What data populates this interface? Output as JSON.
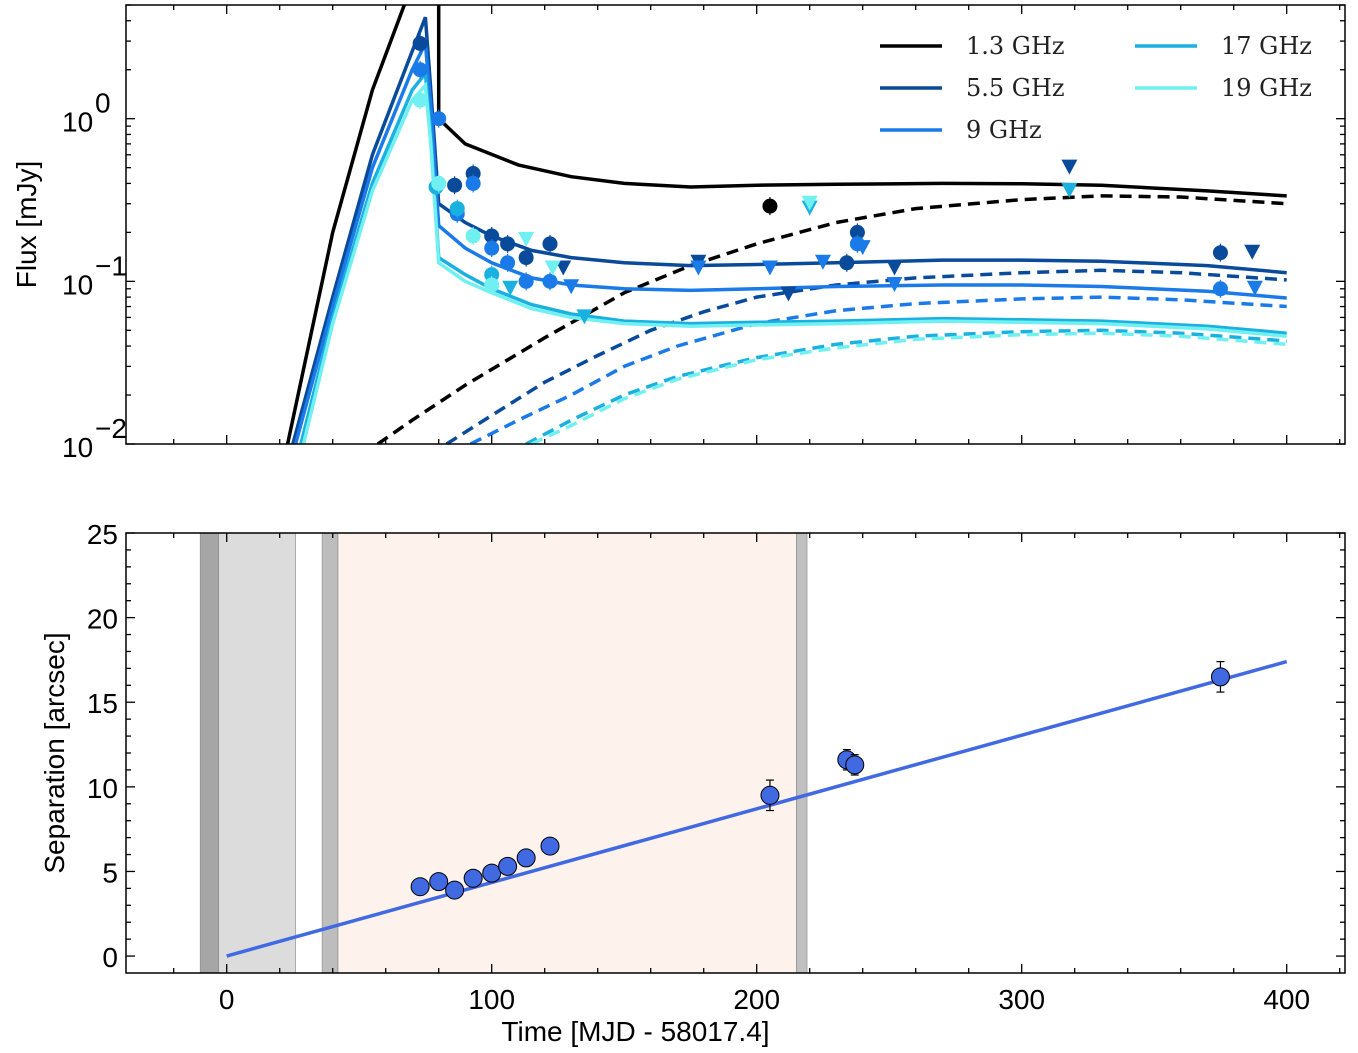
{
  "chart_data": [
    {
      "type": "line",
      "panel": "top",
      "ylabel": "Flux [mJy]",
      "xlabel": "",
      "yscale": "log",
      "xlim": [
        -38,
        422
      ],
      "ylim": [
        0.01,
        5
      ],
      "yticks": [
        {
          "value": 1,
          "base": "10",
          "exp": "0"
        },
        {
          "value": 0.1,
          "base": "10",
          "exp": "−1"
        },
        {
          "value": 0.01,
          "base": "10",
          "exp": "−2"
        }
      ],
      "legend": {
        "placement": "top-right",
        "columns": 2
      },
      "series": [
        {
          "name": "1.3 GHz",
          "color": "#000000",
          "model_total": [
            [
              23,
              0.01
            ],
            [
              40,
              0.2
            ],
            [
              55,
              1.5
            ],
            [
              67,
              5
            ]
          ],
          "model_total_late": [
            [
              80,
              5
            ],
            [
              80,
              1.0
            ],
            [
              90,
              0.7
            ],
            [
              110,
              0.52
            ],
            [
              130,
              0.44
            ],
            [
              150,
              0.4
            ],
            [
              175,
              0.38
            ],
            [
              200,
              0.39
            ],
            [
              230,
              0.395
            ],
            [
              270,
              0.4
            ],
            [
              300,
              0.398
            ],
            [
              330,
              0.39
            ],
            [
              370,
              0.36
            ],
            [
              400,
              0.335
            ]
          ],
          "model_late": [
            [
              57,
              0.01
            ],
            [
              70,
              0.014
            ],
            [
              90,
              0.023
            ],
            [
              120,
              0.045
            ],
            [
              150,
              0.085
            ],
            [
              175,
              0.125
            ],
            [
              200,
              0.17
            ],
            [
              230,
              0.23
            ],
            [
              260,
              0.28
            ],
            [
              300,
              0.318
            ],
            [
              330,
              0.335
            ],
            [
              360,
              0.33
            ],
            [
              400,
              0.3
            ]
          ],
          "points": [
            {
              "x": 205,
              "y": 0.29
            }
          ],
          "upper_limits": [],
          "style": "solid"
        },
        {
          "name": "5.5 GHz",
          "color": "#0a4a9a",
          "model_total": [
            [
              25,
              0.01
            ],
            [
              40,
              0.08
            ],
            [
              55,
              0.6
            ],
            [
              70,
              2.6
            ],
            [
              75,
              4.2
            ],
            [
              77,
              1.5
            ],
            [
              80,
              0.3
            ],
            [
              90,
              0.23
            ],
            [
              100,
              0.19
            ],
            [
              115,
              0.155
            ],
            [
              130,
              0.14
            ],
            [
              150,
              0.13
            ],
            [
              175,
              0.125
            ],
            [
              200,
              0.127
            ],
            [
              230,
              0.13
            ],
            [
              270,
              0.135
            ],
            [
              300,
              0.135
            ],
            [
              330,
              0.133
            ],
            [
              370,
              0.125
            ],
            [
              400,
              0.113
            ]
          ],
          "model_late": [
            [
              83,
              0.01
            ],
            [
              100,
              0.015
            ],
            [
              120,
              0.024
            ],
            [
              140,
              0.035
            ],
            [
              160,
              0.05
            ],
            [
              180,
              0.065
            ],
            [
              200,
              0.08
            ],
            [
              230,
              0.095
            ],
            [
              260,
              0.105
            ],
            [
              300,
              0.113
            ],
            [
              330,
              0.117
            ],
            [
              360,
              0.113
            ],
            [
              400,
              0.102
            ]
          ],
          "points": [
            {
              "x": 73,
              "y": 2.9
            },
            {
              "x": 86,
              "y": 0.39
            },
            {
              "x": 93,
              "y": 0.46
            },
            {
              "x": 100,
              "y": 0.19
            },
            {
              "x": 106,
              "y": 0.17
            },
            {
              "x": 113,
              "y": 0.14
            },
            {
              "x": 122,
              "y": 0.17
            },
            {
              "x": 234,
              "y": 0.13
            },
            {
              "x": 238,
              "y": 0.2
            },
            {
              "x": 375,
              "y": 0.15
            }
          ],
          "upper_limits": [
            {
              "x": 127,
              "y": 0.12
            },
            {
              "x": 178,
              "y": 0.13
            },
            {
              "x": 212,
              "y": 0.083
            },
            {
              "x": 252,
              "y": 0.12
            },
            {
              "x": 318,
              "y": 0.5
            },
            {
              "x": 387,
              "y": 0.15
            }
          ],
          "style": "solid"
        },
        {
          "name": "9 GHz",
          "color": "#1a7ae8",
          "model_total": [
            [
              26,
              0.01
            ],
            [
              40,
              0.07
            ],
            [
              55,
              0.5
            ],
            [
              70,
              2.0
            ],
            [
              75,
              2.9
            ],
            [
              77,
              1.2
            ],
            [
              80,
              0.22
            ],
            [
              90,
              0.16
            ],
            [
              100,
              0.13
            ],
            [
              115,
              0.105
            ],
            [
              130,
              0.095
            ],
            [
              150,
              0.09
            ],
            [
              175,
              0.088
            ],
            [
              200,
              0.09
            ],
            [
              230,
              0.093
            ],
            [
              270,
              0.095
            ],
            [
              300,
              0.095
            ],
            [
              330,
              0.093
            ],
            [
              370,
              0.087
            ],
            [
              400,
              0.079
            ]
          ],
          "model_late": [
            [
              92,
              0.01
            ],
            [
              110,
              0.014
            ],
            [
              130,
              0.02
            ],
            [
              150,
              0.03
            ],
            [
              170,
              0.04
            ],
            [
              200,
              0.055
            ],
            [
              230,
              0.066
            ],
            [
              260,
              0.073
            ],
            [
              300,
              0.078
            ],
            [
              330,
              0.08
            ],
            [
              360,
              0.077
            ],
            [
              400,
              0.07
            ]
          ],
          "points": [
            {
              "x": 73,
              "y": 2.0
            },
            {
              "x": 80,
              "y": 1.0
            },
            {
              "x": 87,
              "y": 0.26
            },
            {
              "x": 93,
              "y": 0.4
            },
            {
              "x": 100,
              "y": 0.16
            },
            {
              "x": 106,
              "y": 0.13
            },
            {
              "x": 113,
              "y": 0.1
            },
            {
              "x": 122,
              "y": 0.1
            },
            {
              "x": 238,
              "y": 0.17
            },
            {
              "x": 375,
              "y": 0.09
            }
          ],
          "upper_limits": [
            {
              "x": 130,
              "y": 0.092
            },
            {
              "x": 178,
              "y": 0.12
            },
            {
              "x": 205,
              "y": 0.12
            },
            {
              "x": 225,
              "y": 0.13
            },
            {
              "x": 240,
              "y": 0.16
            },
            {
              "x": 252,
              "y": 0.095
            },
            {
              "x": 388,
              "y": 0.09
            }
          ],
          "style": "solid"
        },
        {
          "name": "17 GHz",
          "color": "#1ab0e0",
          "model_total": [
            [
              28,
              0.01
            ],
            [
              40,
              0.06
            ],
            [
              55,
              0.4
            ],
            [
              70,
              1.5
            ],
            [
              75,
              1.9
            ],
            [
              77,
              0.8
            ],
            [
              80,
              0.14
            ],
            [
              90,
              0.11
            ],
            [
              100,
              0.09
            ],
            [
              115,
              0.072
            ],
            [
              130,
              0.063
            ],
            [
              150,
              0.057
            ],
            [
              175,
              0.055
            ],
            [
              200,
              0.056
            ],
            [
              230,
              0.057
            ],
            [
              270,
              0.059
            ],
            [
              300,
              0.058
            ],
            [
              330,
              0.057
            ],
            [
              370,
              0.053
            ],
            [
              400,
              0.048
            ]
          ],
          "model_late": [
            [
              113,
              0.01
            ],
            [
              130,
              0.014
            ],
            [
              150,
              0.02
            ],
            [
              170,
              0.026
            ],
            [
              200,
              0.034
            ],
            [
              230,
              0.041
            ],
            [
              260,
              0.046
            ],
            [
              300,
              0.049
            ],
            [
              330,
              0.05
            ],
            [
              360,
              0.048
            ],
            [
              400,
              0.043
            ]
          ],
          "points": [
            {
              "x": 79,
              "y": 0.38
            },
            {
              "x": 87,
              "y": 0.28
            },
            {
              "x": 100,
              "y": 0.11
            }
          ],
          "upper_limits": [
            {
              "x": 107,
              "y": 0.09
            },
            {
              "x": 135,
              "y": 0.06
            },
            {
              "x": 220,
              "y": 0.28
            },
            {
              "x": 318,
              "y": 0.36
            }
          ],
          "style": "solid"
        },
        {
          "name": "19 GHz",
          "color": "#70f0f0",
          "model_total": [
            [
              29,
              0.01
            ],
            [
              40,
              0.055
            ],
            [
              55,
              0.36
            ],
            [
              70,
              1.3
            ],
            [
              75,
              1.6
            ],
            [
              77,
              0.7
            ],
            [
              80,
              0.13
            ],
            [
              90,
              0.1
            ],
            [
              100,
              0.085
            ],
            [
              115,
              0.068
            ],
            [
              130,
              0.06
            ],
            [
              150,
              0.055
            ],
            [
              175,
              0.053
            ],
            [
              200,
              0.054
            ],
            [
              230,
              0.055
            ],
            [
              270,
              0.057
            ],
            [
              300,
              0.056
            ],
            [
              330,
              0.055
            ],
            [
              370,
              0.051
            ],
            [
              400,
              0.046
            ]
          ],
          "model_late": [
            [
              115,
              0.01
            ],
            [
              130,
              0.013
            ],
            [
              150,
              0.019
            ],
            [
              170,
              0.025
            ],
            [
              200,
              0.033
            ],
            [
              230,
              0.039
            ],
            [
              260,
              0.044
            ],
            [
              300,
              0.047
            ],
            [
              330,
              0.048
            ],
            [
              360,
              0.046
            ],
            [
              400,
              0.041
            ]
          ],
          "points": [
            {
              "x": 73,
              "y": 1.3
            },
            {
              "x": 80,
              "y": 0.4
            },
            {
              "x": 93,
              "y": 0.19
            },
            {
              "x": 100,
              "y": 0.095
            }
          ],
          "upper_limits": [
            {
              "x": 113,
              "y": 0.18
            },
            {
              "x": 123,
              "y": 0.12
            },
            {
              "x": 220,
              "y": 0.3
            }
          ],
          "style": "solid"
        }
      ]
    },
    {
      "type": "scatter",
      "panel": "bottom",
      "xlabel": "Time [MJD - 58017.4]",
      "ylabel": "Separation [arcsec]",
      "xlim": [
        -38,
        422
      ],
      "ylim": [
        -1,
        25
      ],
      "xticks": [
        0,
        100,
        200,
        300,
        400
      ],
      "yticks": [
        0,
        5,
        10,
        15,
        20,
        25
      ],
      "shaded_regions": [
        {
          "x0": -10,
          "x1": -3,
          "color": "#a6a6a6"
        },
        {
          "x0": -3,
          "x1": 26,
          "color": "#dcdcdc"
        },
        {
          "x0": 36,
          "x1": 42,
          "color": "#bdbdbd"
        },
        {
          "x0": 42,
          "x1": 215,
          "color": "#fdf2ec"
        },
        {
          "x0": 215,
          "x1": 219,
          "color": "#c0c0c0"
        }
      ],
      "fit_line": {
        "color": "#4169e1",
        "points": [
          [
            0,
            0
          ],
          [
            400,
            17.4
          ]
        ]
      },
      "marker_color": "#4169e1",
      "points": [
        {
          "x": 73,
          "y": 4.1,
          "err": 0
        },
        {
          "x": 80,
          "y": 4.4,
          "err": 0
        },
        {
          "x": 86,
          "y": 3.9,
          "err": 0
        },
        {
          "x": 93,
          "y": 4.6,
          "err": 0
        },
        {
          "x": 100,
          "y": 4.9,
          "err": 0
        },
        {
          "x": 106,
          "y": 5.3,
          "err": 0
        },
        {
          "x": 113,
          "y": 5.8,
          "err": 0
        },
        {
          "x": 122,
          "y": 6.5,
          "err": 0
        },
        {
          "x": 205,
          "y": 9.5,
          "err": 0.9
        },
        {
          "x": 234,
          "y": 11.6,
          "err": 0.6
        },
        {
          "x": 237,
          "y": 11.3,
          "err": 0.6
        },
        {
          "x": 375,
          "y": 16.5,
          "err": 0.9
        }
      ]
    }
  ]
}
